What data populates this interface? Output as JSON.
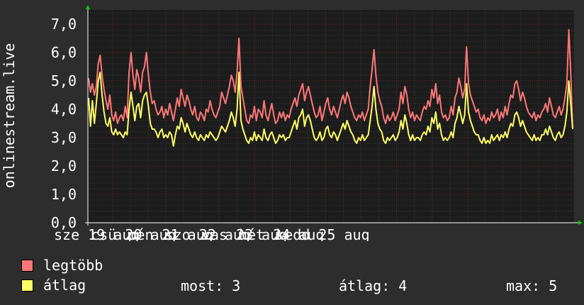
{
  "chart_data": {
    "type": "line",
    "ylabel": "onlinestream.live",
    "ylim": [
      0,
      7.5
    ],
    "yticks": [
      "0,0",
      "1,0",
      "2,0",
      "3,0",
      "4,0",
      "5,0",
      "6,0",
      "7,0"
    ],
    "xtick_labels": [
      "sze 19 aug",
      "csü 20 aug",
      "pén 21 aug",
      "szo 22 aug",
      "vas 23 aug",
      "hét 24 aug",
      "kedd 25 aug"
    ],
    "xtick_visible": [
      "sze 19",
      "aug",
      "20 aug",
      "21 aug",
      "szo 22 aug",
      "23 aug",
      "24 aug",
      "25 aug"
    ],
    "grid": true,
    "series": [
      {
        "name": "legtöbb",
        "color": "#ff7777",
        "values": [
          5.1,
          4.6,
          4.9,
          4.5,
          4.8,
          5.6,
          5.9,
          5.2,
          4.7,
          4.3,
          4.0,
          4.5,
          3.8,
          3.6,
          3.9,
          3.5,
          3.7,
          3.8,
          3.6,
          4.1,
          3.7,
          5.3,
          6.0,
          5.2,
          4.7,
          5.4,
          5.1,
          4.6,
          5.3,
          5.5,
          6.0,
          5.2,
          4.6,
          4.2,
          4.3,
          4.0,
          3.8,
          3.9,
          4.1,
          3.7,
          4.0,
          3.8,
          4.2,
          3.9,
          3.6,
          4.0,
          4.4,
          4.1,
          4.7,
          4.4,
          4.1,
          4.5,
          4.3,
          4.0,
          3.8,
          4.1,
          3.7,
          3.6,
          3.9,
          3.8,
          3.6,
          4.0,
          3.9,
          4.3,
          4.0,
          3.8,
          3.7,
          3.9,
          4.1,
          4.6,
          4.4,
          4.2,
          4.5,
          4.8,
          5.2,
          5.0,
          4.6,
          5.3,
          6.5,
          4.8,
          4.4,
          4.0,
          3.6,
          3.5,
          3.8,
          3.7,
          4.1,
          3.6,
          4.0,
          3.9,
          3.7,
          4.3,
          3.8,
          3.6,
          3.9,
          4.2,
          3.8,
          3.5,
          3.6,
          3.9,
          3.7,
          3.9,
          3.6,
          3.8,
          3.7,
          4.0,
          4.2,
          4.4,
          4.1,
          4.5,
          4.7,
          4.9,
          4.3,
          4.6,
          4.8,
          4.5,
          4.2,
          3.9,
          3.7,
          3.8,
          4.1,
          3.6,
          3.9,
          4.2,
          4.4,
          4.0,
          3.8,
          4.1,
          3.9,
          3.7,
          4.0,
          4.3,
          4.5,
          4.2,
          4.6,
          4.4,
          4.1,
          3.9,
          3.7,
          3.6,
          3.8,
          3.7,
          3.9,
          3.6,
          3.8,
          4.0,
          4.8,
          5.4,
          6.1,
          5.2,
          4.6,
          4.3,
          4.1,
          3.7,
          3.5,
          3.8,
          3.6,
          3.7,
          3.9,
          3.6,
          3.8,
          4.0,
          4.6,
          4.2,
          4.8,
          4.5,
          4.0,
          3.7,
          3.9,
          3.6,
          3.8,
          3.7,
          3.6,
          3.9,
          4.1,
          4.0,
          4.3,
          4.1,
          4.7,
          4.4,
          4.9,
          4.2,
          4.5,
          3.9,
          3.7,
          3.8,
          3.6,
          3.7,
          4.1,
          3.8,
          4.4,
          4.6,
          5.1,
          4.8,
          4.4,
          4.7,
          6.2,
          4.9,
          4.5,
          4.3,
          4.1,
          3.9,
          4.0,
          3.7,
          3.6,
          3.8,
          3.5,
          3.7,
          3.6,
          3.9,
          3.7,
          3.8,
          4.0,
          3.6,
          3.9,
          3.7,
          4.1,
          3.8,
          4.2,
          4.5,
          4.4,
          4.9,
          5.0,
          4.7,
          4.3,
          4.6,
          4.4,
          4.1,
          3.9,
          3.8,
          3.7,
          3.9,
          3.6,
          3.8,
          3.7,
          3.9,
          4.0,
          4.2,
          3.9,
          4.4,
          4.1,
          3.8,
          3.7,
          3.9,
          4.1,
          3.8,
          4.0,
          4.4,
          4.9,
          6.8,
          5.3,
          3.3
        ]
      },
      {
        "name": "átlag",
        "color": "#ffff66",
        "values": [
          4.4,
          3.4,
          4.3,
          3.5,
          4.2,
          5.0,
          5.3,
          4.5,
          3.9,
          3.5,
          3.4,
          3.7,
          3.2,
          3.1,
          3.3,
          3.1,
          3.2,
          3.1,
          3.0,
          3.2,
          3.1,
          4.0,
          4.6,
          4.1,
          3.6,
          4.1,
          4.2,
          3.7,
          4.3,
          4.5,
          4.6,
          4.1,
          3.5,
          3.3,
          3.3,
          3.2,
          3.0,
          3.2,
          3.3,
          3.0,
          3.1,
          3.0,
          3.2,
          3.1,
          2.7,
          3.1,
          3.4,
          3.3,
          3.7,
          3.5,
          3.2,
          3.5,
          3.3,
          3.1,
          3.0,
          3.2,
          3.0,
          2.9,
          3.1,
          3.0,
          2.9,
          3.1,
          3.0,
          3.2,
          3.1,
          3.0,
          2.9,
          3.0,
          3.2,
          3.4,
          3.3,
          3.2,
          3.4,
          3.6,
          3.9,
          3.7,
          3.4,
          4.0,
          5.3,
          3.6,
          3.3,
          3.1,
          2.9,
          2.8,
          3.0,
          2.9,
          3.2,
          2.9,
          3.1,
          3.0,
          2.9,
          3.3,
          3.0,
          2.9,
          3.1,
          3.2,
          3.0,
          2.8,
          2.9,
          3.1,
          3.0,
          3.1,
          2.9,
          3.0,
          3.0,
          3.2,
          3.4,
          3.6,
          3.3,
          3.7,
          3.8,
          4.0,
          3.4,
          3.7,
          3.8,
          3.6,
          3.3,
          3.0,
          2.9,
          3.0,
          3.2,
          2.9,
          3.0,
          3.3,
          3.4,
          3.1,
          3.0,
          3.2,
          3.1,
          2.9,
          3.1,
          3.3,
          3.5,
          3.3,
          3.6,
          3.4,
          3.2,
          3.1,
          2.9,
          2.8,
          3.0,
          2.9,
          3.1,
          2.9,
          3.0,
          3.1,
          3.6,
          4.1,
          4.8,
          4.0,
          3.5,
          3.3,
          3.2,
          2.9,
          2.8,
          3.0,
          2.9,
          3.0,
          3.1,
          2.9,
          3.0,
          3.2,
          3.6,
          3.3,
          3.8,
          3.5,
          3.1,
          2.9,
          3.1,
          2.9,
          3.0,
          3.0,
          2.9,
          3.1,
          3.2,
          3.1,
          3.4,
          3.2,
          3.7,
          3.5,
          3.9,
          3.3,
          3.5,
          3.1,
          2.9,
          3.0,
          2.9,
          3.0,
          3.2,
          3.0,
          3.5,
          3.7,
          4.1,
          3.8,
          3.5,
          3.8,
          4.9,
          3.9,
          3.6,
          3.4,
          3.2,
          3.1,
          3.1,
          2.9,
          2.8,
          3.0,
          2.8,
          2.9,
          2.8,
          3.1,
          2.9,
          3.0,
          3.1,
          2.9,
          3.1,
          3.0,
          3.2,
          3.0,
          3.3,
          3.5,
          3.4,
          3.8,
          3.9,
          3.7,
          3.4,
          3.6,
          3.4,
          3.2,
          3.1,
          3.0,
          2.9,
          3.1,
          2.9,
          3.0,
          2.9,
          3.1,
          3.1,
          3.3,
          3.1,
          3.4,
          3.2,
          3.0,
          2.9,
          3.1,
          3.2,
          3.0,
          3.1,
          3.4,
          3.9,
          5.0,
          4.2,
          3.3
        ]
      }
    ]
  },
  "legend": [
    {
      "label": "legtöbb",
      "color": "#ff7777"
    },
    {
      "label": "átlag",
      "color": "#ffff66"
    }
  ],
  "stats": {
    "most": "most: 3",
    "atlag": "átlag: 4",
    "max": "max: 5"
  }
}
